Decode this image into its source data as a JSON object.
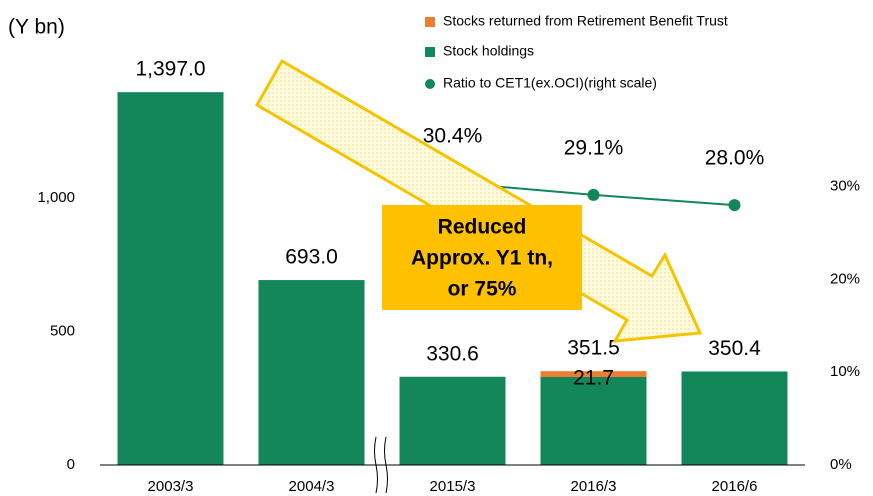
{
  "chart_data": {
    "type": "bar",
    "y_label": "(Y bn)",
    "categories": [
      "2003/3",
      "2004/3",
      "2015/3",
      "2016/3",
      "2016/6"
    ],
    "series": [
      {
        "name": "Stocks returned from Retirement Benefit Trust",
        "color": "#ed7d31",
        "values": [
          null,
          null,
          null,
          21.7,
          null
        ],
        "value_labels": [
          null,
          null,
          null,
          "21.7",
          null
        ]
      },
      {
        "name": "Stock holdings",
        "color": "#13865a",
        "values": [
          1397.0,
          693.0,
          330.6,
          329.8,
          350.4
        ]
      },
      {
        "name": "Ratio to CET1(ex.OCI)(right scale)",
        "color": "#13865a",
        "type": "line",
        "axis": "y2",
        "values": [
          null,
          null,
          30.4,
          29.1,
          28.0
        ],
        "value_labels": [
          null,
          null,
          "30.4%",
          "29.1%",
          "28.0%"
        ]
      }
    ],
    "totals": [
      1397.0,
      693.0,
      330.6,
      351.5,
      350.4
    ],
    "total_labels": [
      "1,397.0",
      "693.0",
      "330.6",
      "351.5",
      "350.4"
    ],
    "ylim": [
      0,
      1600
    ],
    "yticks": [
      0,
      500,
      {
        "value": 1000,
        "label": "1,000"
      }
    ],
    "y2lim": [
      0,
      46
    ],
    "y2ticks": [
      {
        "value": 0,
        "label": "0%"
      },
      {
        "value": 10,
        "label": "10%"
      },
      {
        "value": 20,
        "label": "20%"
      },
      {
        "value": 30,
        "label": "30%"
      }
    ],
    "annotation": [
      "Reduced",
      "Approx. Y1 tn,",
      "or 75%"
    ],
    "axis_break": true,
    "legend": "upper right"
  }
}
